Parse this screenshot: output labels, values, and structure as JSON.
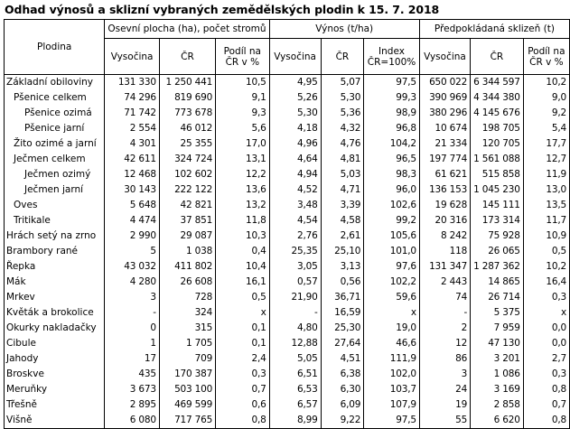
{
  "title": "Odhad výnosů a sklizní vybraných zemědělských plodin k 15. 7. 2018",
  "header": {
    "plodina": "Plodina",
    "groups": [
      "Osevní plocha (ha), počet stromů",
      "Výnos (t/ha)",
      "Předpokládaná sklizeň (t)"
    ],
    "sub": [
      "Vysočina",
      "ČR",
      "Podíl na ČR v %",
      "Vysočina",
      "ČR",
      "Index ČR=100%",
      "Vysočina",
      "ČR",
      "Podíl na ČR v %"
    ]
  },
  "rows": [
    {
      "name": "Základní obiloviny",
      "indent": 0,
      "v": [
        "131 330",
        "1 250 441",
        "10,5",
        "4,95",
        "5,07",
        "97,5",
        "650 022",
        "6 344 597",
        "10,2"
      ]
    },
    {
      "name": "Pšenice celkem",
      "indent": 1,
      "v": [
        "74 296",
        "819 690",
        "9,1",
        "5,26",
        "5,30",
        "99,3",
        "390 969",
        "4 344 380",
        "9,0"
      ]
    },
    {
      "name": "Pšenice ozimá",
      "indent": 2,
      "v": [
        "71 742",
        "773 678",
        "9,3",
        "5,30",
        "5,36",
        "98,9",
        "380 296",
        "4 145 676",
        "9,2"
      ]
    },
    {
      "name": "Pšenice jarní",
      "indent": 2,
      "v": [
        "2 554",
        "46 012",
        "5,6",
        "4,18",
        "4,32",
        "96,8",
        "10 674",
        "198 705",
        "5,4"
      ]
    },
    {
      "name": "Žito ozimé a jarní",
      "indent": 1,
      "v": [
        "4 301",
        "25 355",
        "17,0",
        "4,96",
        "4,76",
        "104,2",
        "21 334",
        "120 705",
        "17,7"
      ]
    },
    {
      "name": "Ječmen celkem",
      "indent": 1,
      "v": [
        "42 611",
        "324 724",
        "13,1",
        "4,64",
        "4,81",
        "96,5",
        "197 774",
        "1 561 088",
        "12,7"
      ]
    },
    {
      "name": "Ječmen ozimý",
      "indent": 2,
      "v": [
        "12 468",
        "102 602",
        "12,2",
        "4,94",
        "5,03",
        "98,3",
        "61 621",
        "515 858",
        "11,9"
      ]
    },
    {
      "name": "Ječmen jarní",
      "indent": 2,
      "v": [
        "30 143",
        "222 122",
        "13,6",
        "4,52",
        "4,71",
        "96,0",
        "136 153",
        "1 045 230",
        "13,0"
      ]
    },
    {
      "name": "Oves",
      "indent": 1,
      "v": [
        "5 648",
        "42 821",
        "13,2",
        "3,48",
        "3,39",
        "102,6",
        "19 628",
        "145 111",
        "13,5"
      ]
    },
    {
      "name": "Tritikale",
      "indent": 1,
      "v": [
        "4 474",
        "37 851",
        "11,8",
        "4,54",
        "4,58",
        "99,2",
        "20 316",
        "173 314",
        "11,7"
      ]
    },
    {
      "name": "Hrách setý na zrno",
      "indent": 0,
      "v": [
        "2 990",
        "29 087",
        "10,3",
        "2,76",
        "2,61",
        "105,6",
        "8 242",
        "75 928",
        "10,9"
      ]
    },
    {
      "name": "Brambory rané",
      "indent": 0,
      "v": [
        "5",
        "1 038",
        "0,4",
        "25,35",
        "25,10",
        "101,0",
        "118",
        "26 065",
        "0,5"
      ]
    },
    {
      "name": "Řepka",
      "indent": 0,
      "v": [
        "43 032",
        "411 802",
        "10,4",
        "3,05",
        "3,13",
        "97,6",
        "131 347",
        "1 287 362",
        "10,2"
      ]
    },
    {
      "name": "Mák",
      "indent": 0,
      "v": [
        "4 280",
        "26 608",
        "16,1",
        "0,57",
        "0,56",
        "102,2",
        "2 443",
        "14 865",
        "16,4"
      ]
    },
    {
      "name": "Mrkev",
      "indent": 0,
      "v": [
        "3",
        "728",
        "0,5",
        "21,90",
        "36,71",
        "59,6",
        "74",
        "26 714",
        "0,3"
      ]
    },
    {
      "name": "Květák a brokolice",
      "indent": 0,
      "v": [
        "-",
        "324",
        "x",
        "-",
        "16,59",
        "x",
        "-",
        "5 375",
        "x"
      ]
    },
    {
      "name": "Okurky nakladačky",
      "indent": 0,
      "v": [
        "0",
        "315",
        "0,1",
        "4,80",
        "25,30",
        "19,0",
        "2",
        "7 959",
        "0,0"
      ]
    },
    {
      "name": "Cibule",
      "indent": 0,
      "v": [
        "1",
        "1 705",
        "0,1",
        "12,88",
        "27,64",
        "46,6",
        "12",
        "47 130",
        "0,0"
      ]
    },
    {
      "name": "Jahody",
      "indent": 0,
      "v": [
        "17",
        "709",
        "2,4",
        "5,05",
        "4,51",
        "111,9",
        "86",
        "3 201",
        "2,7"
      ]
    },
    {
      "name": "Broskve",
      "indent": 0,
      "v": [
        "435",
        "170 387",
        "0,3",
        "6,51",
        "6,38",
        "102,0",
        "3",
        "1 086",
        "0,3"
      ]
    },
    {
      "name": "Meruňky",
      "indent": 0,
      "v": [
        "3 673",
        "503 100",
        "0,7",
        "6,53",
        "6,30",
        "103,7",
        "24",
        "3 169",
        "0,8"
      ]
    },
    {
      "name": "Třešně",
      "indent": 0,
      "v": [
        "2 895",
        "469 599",
        "0,6",
        "6,57",
        "6,09",
        "107,9",
        "19",
        "2 858",
        "0,7"
      ]
    },
    {
      "name": "Višně",
      "indent": 0,
      "v": [
        "6 080",
        "717 765",
        "0,8",
        "8,99",
        "9,22",
        "97,5",
        "55",
        "6 620",
        "0,8"
      ]
    }
  ]
}
